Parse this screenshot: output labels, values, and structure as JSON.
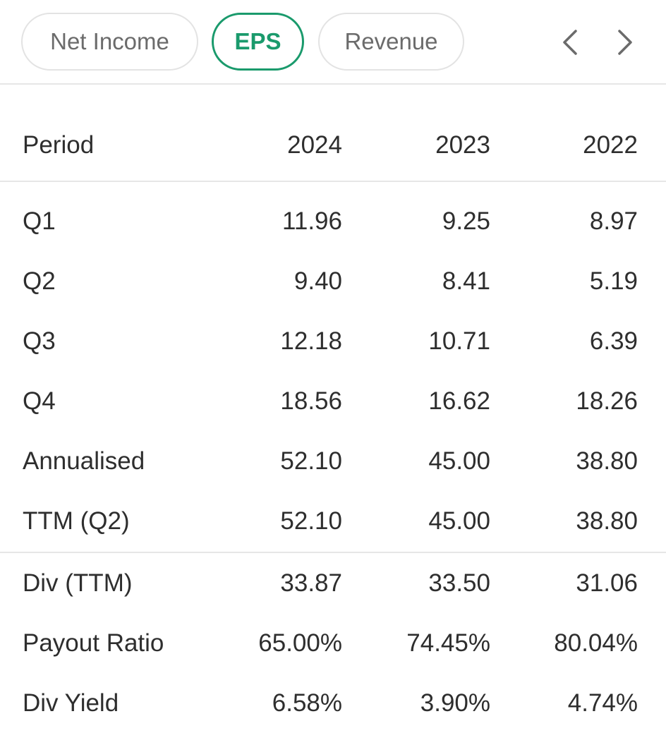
{
  "tabs": [
    {
      "label": "Net Income",
      "active": false
    },
    {
      "label": "EPS",
      "active": true
    },
    {
      "label": "Revenue",
      "active": false
    }
  ],
  "nav": {
    "prev_icon": "chevron-left-icon",
    "next_icon": "chevron-right-icon"
  },
  "colors": {
    "accent": "#1a9a6c",
    "border": "#e3e3e3",
    "text": "#2e2e2e",
    "muted": "#6b6b6b"
  },
  "table": {
    "header": {
      "label": "Period",
      "years": [
        "2024",
        "2023",
        "2022"
      ]
    },
    "rows": [
      {
        "label": "Q1",
        "values": [
          "11.96",
          "9.25",
          "8.97"
        ]
      },
      {
        "label": "Q2",
        "values": [
          "9.40",
          "8.41",
          "5.19"
        ]
      },
      {
        "label": "Q3",
        "values": [
          "12.18",
          "10.71",
          "6.39"
        ]
      },
      {
        "label": "Q4",
        "values": [
          "18.56",
          "16.62",
          "18.26"
        ]
      },
      {
        "label": "Annualised",
        "values": [
          "52.10",
          "45.00",
          "38.80"
        ]
      },
      {
        "label": "TTM (Q2)",
        "values": [
          "52.10",
          "45.00",
          "38.80"
        ]
      }
    ],
    "dividend_rows": [
      {
        "label": "Div (TTM)",
        "values": [
          "33.87",
          "33.50",
          "31.06"
        ]
      },
      {
        "label": "Payout Ratio",
        "values": [
          "65.00%",
          "74.45%",
          "80.04%"
        ]
      },
      {
        "label": "Div Yield",
        "values": [
          "6.58%",
          "3.90%",
          "4.74%"
        ]
      }
    ]
  }
}
